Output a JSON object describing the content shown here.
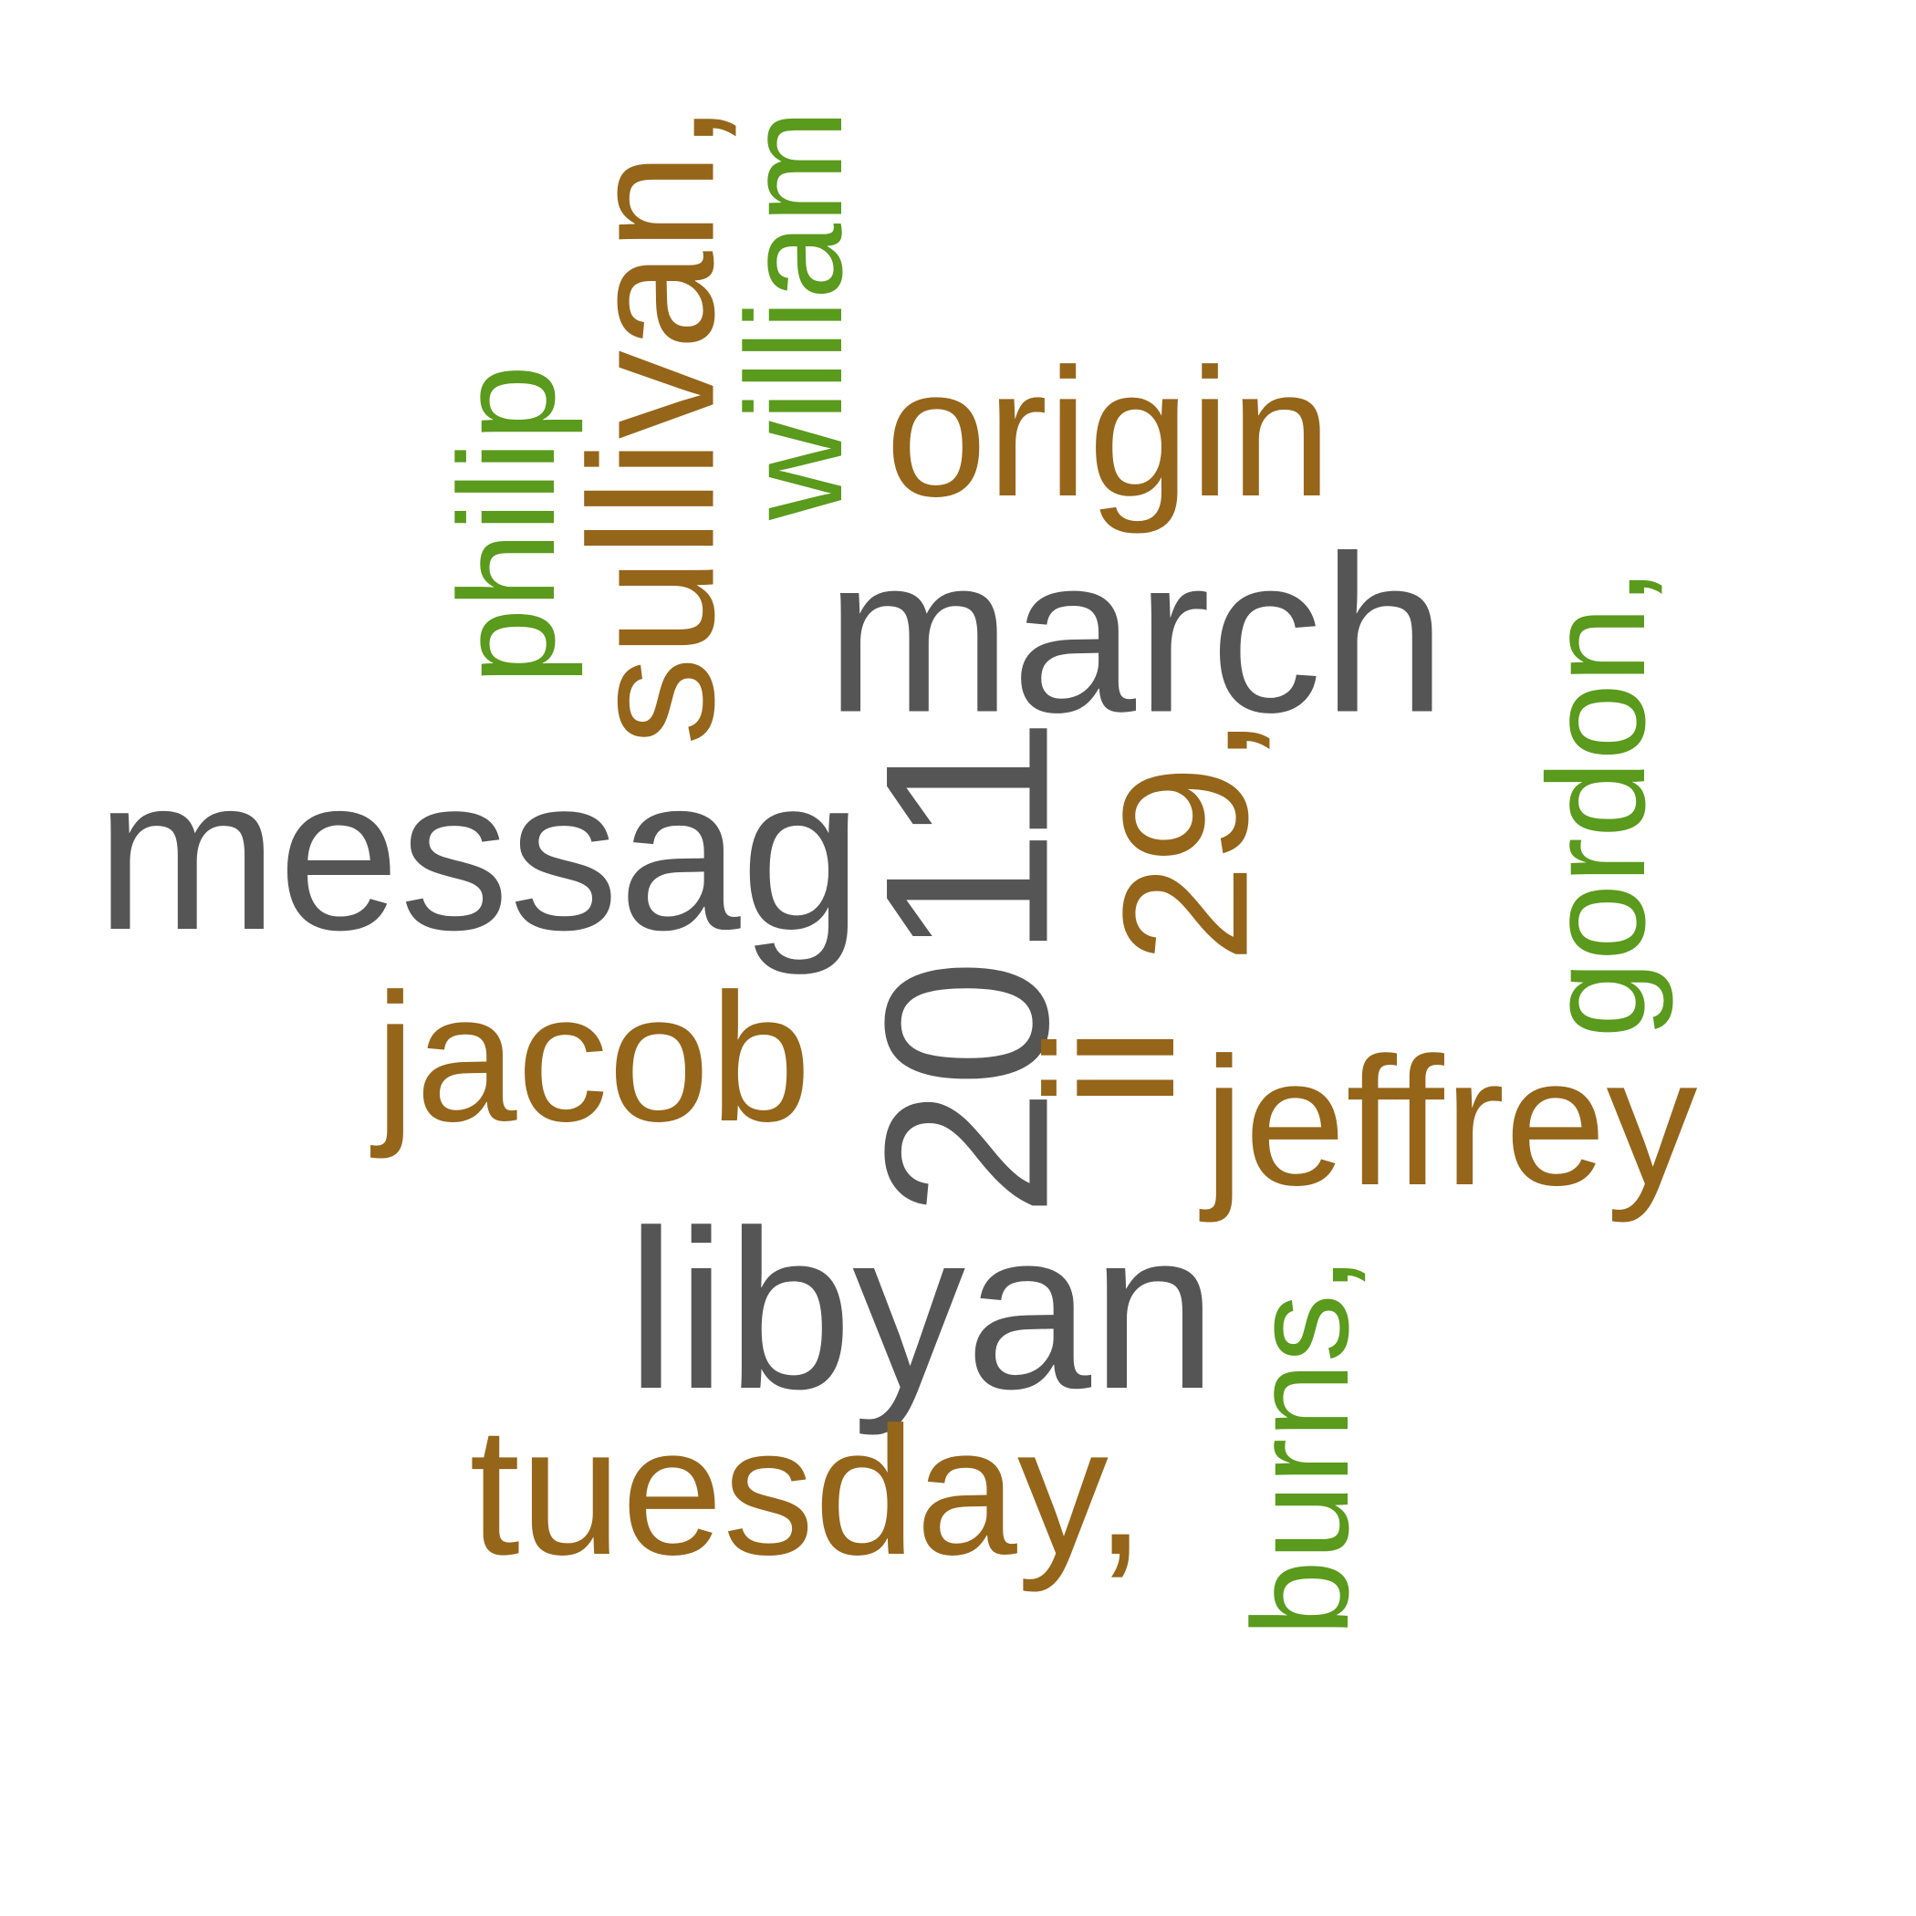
{
  "words": {
    "messag": "messag",
    "march": "march",
    "libyan": "libyan",
    "year": "2011",
    "origin": "origin",
    "jacob": "jacob",
    "jeffrey": "jeffrey",
    "tuesday": "tuesday,",
    "sullivan": "sullivan,",
    "william": "william",
    "philip": "philip",
    "day": "29,",
    "ii": "ii",
    "gordon": "gordon,",
    "burns": "burns,"
  },
  "colors": {
    "gray": "#555555",
    "brown": "#95651a",
    "green": "#5a9a1c",
    "background": "#ffffff"
  }
}
